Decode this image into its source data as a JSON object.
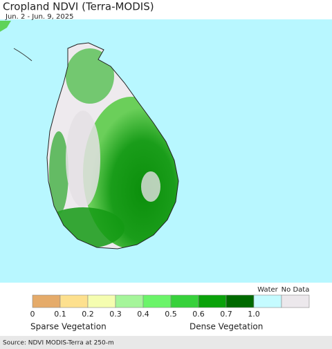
{
  "title": "Cropland NDVI (Terra-MODIS)",
  "subtitle": "Jun. 2 - Jun. 9, 2025",
  "legend": {
    "colors": [
      "#e5ab6a",
      "#fde08e",
      "#f5fdb0",
      "#a5f59a",
      "#6bf469",
      "#37d13b",
      "#0aa20a",
      "#006a00"
    ],
    "water_color": "#c5fbff",
    "nodata_color": "#ece8ec",
    "water_label": "Water",
    "nodata_label": "No Data",
    "ticks": [
      "0",
      "0.1",
      "0.2",
      "0.3",
      "0.4",
      "0.5",
      "0.6",
      "0.7",
      "1.0"
    ],
    "left_caption": "Sparse Vegetation",
    "right_caption": "Dense Vegetation"
  },
  "source": "Source: NDVI MODIS-Terra at 250-m"
}
